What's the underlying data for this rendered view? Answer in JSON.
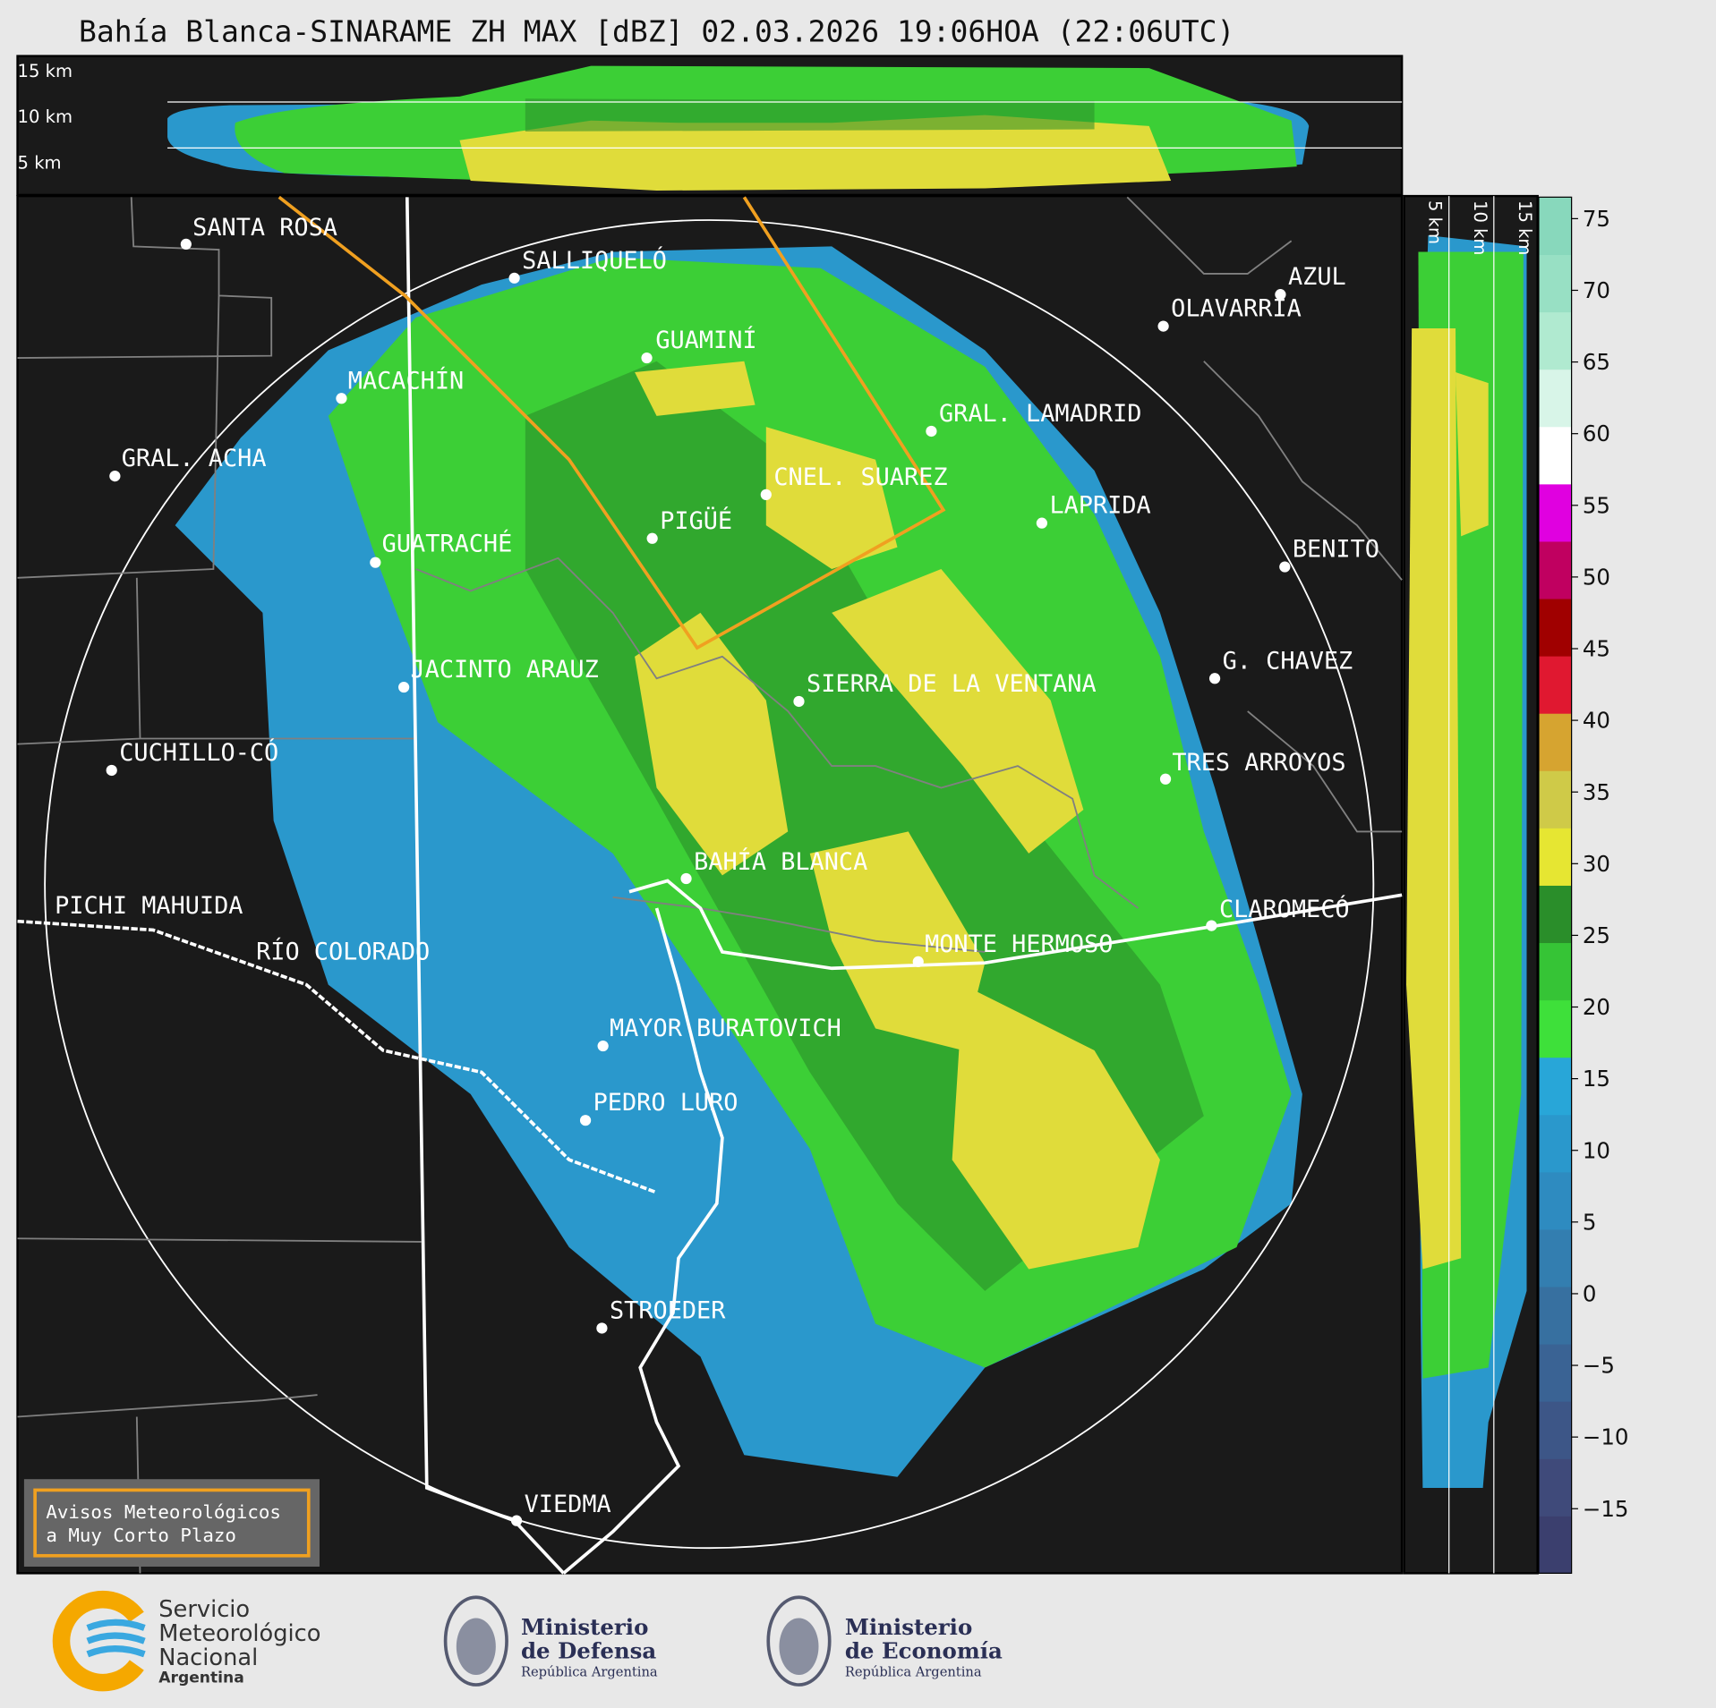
{
  "title": "Bahía Blanca-SINARAME ZH MAX [dBZ] 02.03.2026 19:06HOA (22:06UTC)",
  "top_panel": {
    "height_labels": [
      "15 km",
      "10 km",
      "5 km"
    ]
  },
  "side_panel": {
    "height_labels": [
      "5 km",
      "10 km",
      "15 km"
    ]
  },
  "cities": [
    "SANTA ROSA",
    "SALLIQUELÓ",
    "GUAMINÍ",
    "MACACHÍN",
    "GRAL. ACHA",
    "CNEL. SUAREZ",
    "PIGÜÉ",
    "GUATRACHÉ",
    "AZUL",
    "OLAVARRÍA",
    "GRAL. LAMADRID",
    "LAPRIDA",
    "BENITO",
    "G. CHAVEZ",
    "JACINTO ARAUZ",
    "SIERRA DE LA VENTANA",
    "CUCHILLO-CÓ",
    "TRES ARROYOS",
    "BAHÍA BLANCA",
    "PICHI MAHUIDA",
    "CLAROMECÓ",
    "RÍO COLORADO",
    "MONTE HERMOSO",
    "MAYOR BURATOVICH",
    "PEDRO LURO",
    "STROEDER",
    "VIEDMA"
  ],
  "colorbar": {
    "lim": [
      -19.5,
      76.5
    ],
    "ticks": [
      75,
      70,
      65,
      60,
      55,
      50,
      45,
      40,
      35,
      30,
      25,
      20,
      15,
      10,
      5,
      0,
      {
        "value": -5,
        "label": "−5"
      },
      {
        "value": -10,
        "label": "−10"
      },
      {
        "value": -15,
        "label": "−15"
      }
    ],
    "colors": [
      "#3b3f6e",
      "#3f4a7a",
      "#3d5687",
      "#3a6394",
      "#3770a0",
      "#337eb0",
      "#2e8bc0",
      "#2a98cc",
      "#28a6d8",
      "#3ee03a",
      "#36c436",
      "#2a8e2a",
      "#e6e632",
      "#cfca48",
      "#d6a430",
      "#e01830",
      "#a00000",
      "#c00060",
      "#e000e0",
      "#ffffff",
      "#d8f5e8",
      "#b0ead0",
      "#98e0c4",
      "#88d8bc"
    ]
  },
  "notice": {
    "lines": [
      "Avisos Meteorológicos",
      "a Muy Corto Plazo"
    ]
  },
  "footer": {
    "smn": {
      "lines": [
        "Servicio",
        "Meteorológico",
        "Nacional"
      ],
      "country": "Argentina"
    },
    "defensa": {
      "lines": [
        "Ministerio",
        "de Defensa"
      ],
      "country": "República Argentina"
    },
    "economia": {
      "lines": [
        "Ministerio",
        "de Economía"
      ],
      "country": "República Argentina"
    }
  }
}
